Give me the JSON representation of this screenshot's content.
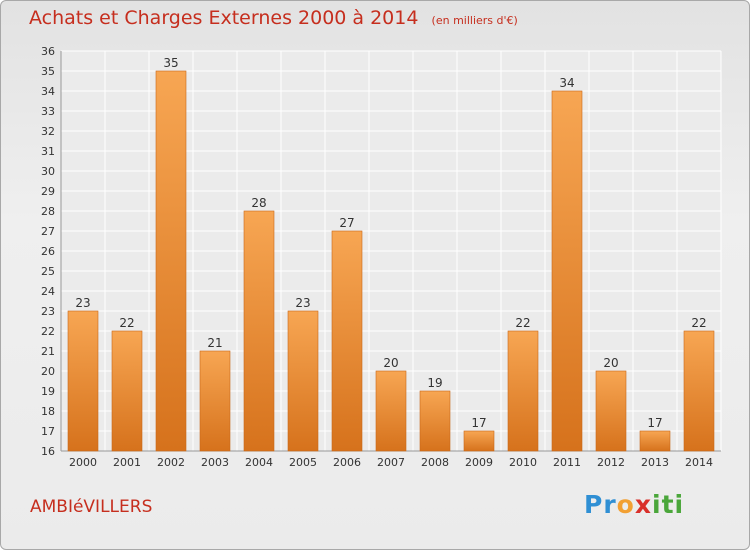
{
  "chart_data": {
    "type": "bar",
    "title": "Achats et Charges Externes 2000 à 2014",
    "unit": "(en milliers d'€)",
    "categories": [
      "2000",
      "2001",
      "2002",
      "2003",
      "2004",
      "2005",
      "2006",
      "2007",
      "2008",
      "2009",
      "2010",
      "2011",
      "2012",
      "2013",
      "2014"
    ],
    "values": [
      23,
      22,
      35,
      21,
      28,
      23,
      27,
      20,
      19,
      17,
      22,
      34,
      20,
      17,
      22
    ],
    "ylim": [
      16,
      36
    ],
    "yticks": [
      16,
      17,
      18,
      19,
      20,
      21,
      22,
      23,
      24,
      25,
      26,
      27,
      28,
      29,
      30,
      31,
      32,
      33,
      34,
      35,
      36
    ],
    "grid": true,
    "bar_color": "#f08c30",
    "title_color": "#c62e1e"
  },
  "footer": {
    "commune": "AMBIéVILLERS",
    "brand_letters": [
      "P",
      "r",
      "o",
      "x",
      "i",
      "t",
      "i"
    ],
    "brand_colors": [
      "#2f8fd4",
      "#2f8fd4",
      "#f2a033",
      "#d9302a",
      "#4aa63a",
      "#4aa63a",
      "#4aa63a"
    ]
  }
}
